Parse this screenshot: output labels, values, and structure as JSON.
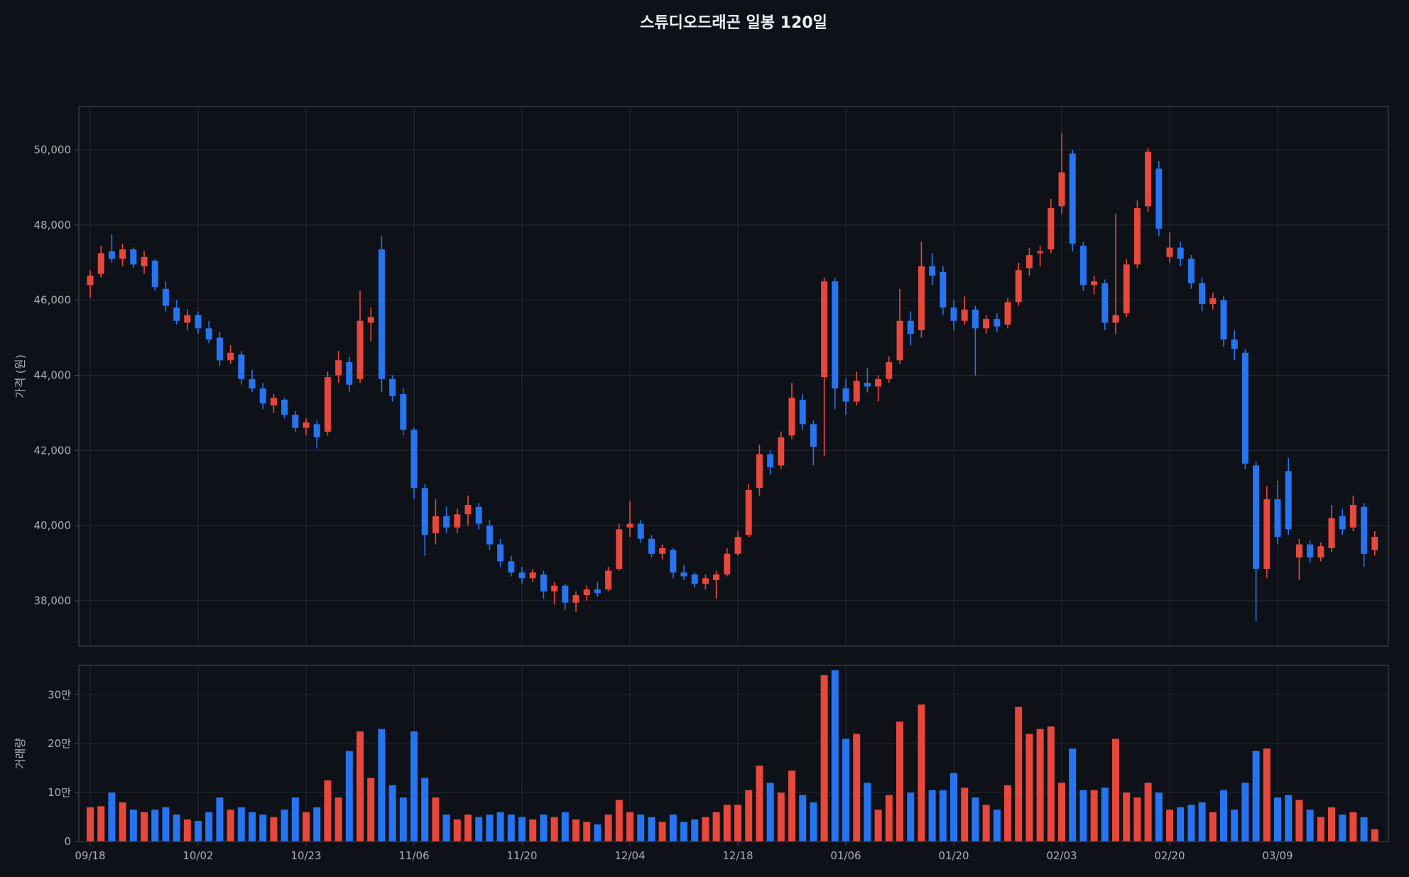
{
  "chart_data": {
    "type": "candlestick",
    "title": "스튜디오드래곤 일봉 120일",
    "grid": true,
    "colors": {
      "up": "#e8473c",
      "down": "#2774f0",
      "background": "#0e1117",
      "grid": "#232936",
      "spine": "#3d4452",
      "tick_text": "#a9afba",
      "title_text": "#eceff4"
    },
    "price": {
      "ylabel": "가격 (원)",
      "ylim": [
        36790,
        51153
      ],
      "yticks": [
        38000,
        40000,
        42000,
        44000,
        46000,
        48000,
        50000
      ],
      "ytick_labels": [
        "38,000",
        "40,000",
        "42,000",
        "44,000",
        "46,000",
        "48,000",
        "50,000"
      ]
    },
    "volume": {
      "ylabel": "거래량",
      "ylim": [
        0,
        360000
      ],
      "yticks": [
        0,
        100000,
        200000,
        300000
      ],
      "ytick_labels": [
        "0",
        "10만",
        "20만",
        "30만"
      ]
    },
    "x_tick_indices": [
      0,
      10,
      20,
      30,
      40,
      50,
      60,
      70,
      80,
      90,
      100,
      110
    ],
    "x_tick_labels": [
      "09/18",
      "10/02",
      "10/23",
      "11/06",
      "11/20",
      "12/04",
      "12/18",
      "01/06",
      "01/20",
      "02/03",
      "02/20",
      "03/09"
    ],
    "ohlcv": [
      [
        46400,
        46800,
        46050,
        46650,
        70000
      ],
      [
        46700,
        47450,
        46600,
        47250,
        72000
      ],
      [
        47300,
        47750,
        47000,
        47100,
        100000
      ],
      [
        47100,
        47500,
        46900,
        47350,
        80000
      ],
      [
        47350,
        47400,
        46850,
        46950,
        65000
      ],
      [
        46900,
        47300,
        46700,
        47150,
        60000
      ],
      [
        47050,
        47100,
        46250,
        46350,
        65000
      ],
      [
        46300,
        46500,
        45700,
        45850,
        70000
      ],
      [
        45800,
        46000,
        45350,
        45450,
        55000
      ],
      [
        45400,
        45750,
        45200,
        45600,
        45000
      ],
      [
        45600,
        45700,
        45100,
        45250,
        42000
      ],
      [
        45250,
        45450,
        44850,
        44950,
        60000
      ],
      [
        45000,
        45150,
        44250,
        44400,
        90000
      ],
      [
        44400,
        44800,
        44300,
        44600,
        65000
      ],
      [
        44550,
        44650,
        43750,
        43900,
        70000
      ],
      [
        43900,
        44150,
        43550,
        43650,
        60000
      ],
      [
        43650,
        43800,
        43100,
        43250,
        55000
      ],
      [
        43200,
        43500,
        43000,
        43400,
        50000
      ],
      [
        43350,
        43400,
        42850,
        42950,
        65000
      ],
      [
        42950,
        43050,
        42500,
        42600,
        90000
      ],
      [
        42600,
        42850,
        42400,
        42750,
        60000
      ],
      [
        42700,
        42800,
        42050,
        42350,
        70000
      ],
      [
        42500,
        44100,
        42400,
        43950,
        125000
      ],
      [
        44000,
        44650,
        43800,
        44400,
        90000
      ],
      [
        44350,
        44500,
        43550,
        43750,
        185000
      ],
      [
        43900,
        46250,
        43800,
        45450,
        225000
      ],
      [
        45400,
        45800,
        44900,
        45550,
        130000
      ],
      [
        47350,
        47700,
        43550,
        43900,
        230000
      ],
      [
        43900,
        44000,
        43300,
        43450,
        115000
      ],
      [
        43500,
        43650,
        42400,
        42550,
        90000
      ],
      [
        42550,
        42600,
        40700,
        41000,
        225000
      ],
      [
        41000,
        41100,
        39200,
        39750,
        130000
      ],
      [
        39800,
        40700,
        39500,
        40250,
        90000
      ],
      [
        40250,
        40500,
        39800,
        39950,
        55000
      ],
      [
        39950,
        40450,
        39800,
        40300,
        45000
      ],
      [
        40300,
        40800,
        40000,
        40550,
        55000
      ],
      [
        40500,
        40600,
        39900,
        40050,
        50000
      ],
      [
        40000,
        40150,
        39350,
        39500,
        55000
      ],
      [
        39500,
        39650,
        38900,
        39050,
        60000
      ],
      [
        39050,
        39200,
        38650,
        38750,
        55000
      ],
      [
        38750,
        38900,
        38450,
        38600,
        50000
      ],
      [
        38600,
        38850,
        38500,
        38750,
        45000
      ],
      [
        38700,
        38800,
        38050,
        38250,
        55000
      ],
      [
        38250,
        38500,
        37900,
        38400,
        50000
      ],
      [
        38400,
        38450,
        37750,
        37950,
        60000
      ],
      [
        37950,
        38250,
        37700,
        38150,
        45000
      ],
      [
        38150,
        38400,
        38000,
        38300,
        40000
      ],
      [
        38300,
        38500,
        38100,
        38200,
        35000
      ],
      [
        38300,
        38900,
        38250,
        38800,
        55000
      ],
      [
        38850,
        40050,
        38800,
        39900,
        85000
      ],
      [
        39950,
        40650,
        39700,
        40050,
        60000
      ],
      [
        40050,
        40150,
        39550,
        39650,
        55000
      ],
      [
        39650,
        39750,
        39150,
        39250,
        50000
      ],
      [
        39250,
        39500,
        39100,
        39400,
        40000
      ],
      [
        39350,
        39400,
        38600,
        38750,
        55000
      ],
      [
        38750,
        38950,
        38550,
        38650,
        40000
      ],
      [
        38700,
        38750,
        38350,
        38450,
        45000
      ],
      [
        38450,
        38700,
        38300,
        38600,
        50000
      ],
      [
        38550,
        38800,
        38050,
        38700,
        60000
      ],
      [
        38700,
        39400,
        38650,
        39250,
        75000
      ],
      [
        39250,
        39850,
        39200,
        39700,
        75000
      ],
      [
        39750,
        41100,
        39700,
        40950,
        105000
      ],
      [
        41000,
        42150,
        40800,
        41900,
        155000
      ],
      [
        41900,
        42000,
        41350,
        41550,
        120000
      ],
      [
        41600,
        42500,
        41500,
        42350,
        100000
      ],
      [
        42400,
        43800,
        42300,
        43400,
        145000
      ],
      [
        43350,
        43500,
        42550,
        42700,
        95000
      ],
      [
        42700,
        42800,
        41600,
        42100,
        80000
      ],
      [
        43950,
        46600,
        41850,
        46500,
        340000
      ],
      [
        46500,
        46600,
        43100,
        43650,
        350000
      ],
      [
        43650,
        43900,
        42950,
        43300,
        210000
      ],
      [
        43300,
        44100,
        43200,
        43850,
        220000
      ],
      [
        43800,
        44200,
        43550,
        43700,
        120000
      ],
      [
        43700,
        44000,
        43300,
        43900,
        65000
      ],
      [
        43900,
        44500,
        43800,
        44350,
        95000
      ],
      [
        44400,
        46300,
        44300,
        45450,
        245000
      ],
      [
        45450,
        45700,
        44800,
        45100,
        100000
      ],
      [
        45200,
        47550,
        45000,
        46900,
        280000
      ],
      [
        46900,
        47250,
        46400,
        46650,
        105000
      ],
      [
        46750,
        46900,
        45600,
        45800,
        105000
      ],
      [
        45800,
        46000,
        45200,
        45450,
        140000
      ],
      [
        45450,
        46100,
        45350,
        45750,
        110000
      ],
      [
        45750,
        45850,
        44000,
        45250,
        90000
      ],
      [
        45250,
        45600,
        45100,
        45500,
        75000
      ],
      [
        45500,
        45650,
        45150,
        45300,
        65000
      ],
      [
        45350,
        46050,
        45250,
        45950,
        115000
      ],
      [
        45950,
        47000,
        45850,
        46800,
        275000
      ],
      [
        46850,
        47400,
        46650,
        47200,
        220000
      ],
      [
        47250,
        47450,
        46900,
        47300,
        230000
      ],
      [
        47350,
        48700,
        47250,
        48450,
        235000
      ],
      [
        48500,
        50450,
        48300,
        49400,
        120000
      ],
      [
        49900,
        50000,
        47300,
        47500,
        190000
      ],
      [
        47450,
        47550,
        46250,
        46400,
        105000
      ],
      [
        46400,
        46650,
        46150,
        46500,
        105000
      ],
      [
        46450,
        46550,
        45200,
        45400,
        110000
      ],
      [
        45400,
        48300,
        45100,
        45600,
        210000
      ],
      [
        45650,
        47100,
        45550,
        46950,
        100000
      ],
      [
        46950,
        48650,
        46850,
        48450,
        90000
      ],
      [
        48500,
        50050,
        48350,
        49950,
        120000
      ],
      [
        49500,
        49700,
        47700,
        47900,
        100000
      ],
      [
        47150,
        47800,
        47000,
        47400,
        65000
      ],
      [
        47400,
        47550,
        46900,
        47100,
        70000
      ],
      [
        47100,
        47200,
        46300,
        46450,
        75000
      ],
      [
        46450,
        46600,
        45700,
        45900,
        80000
      ],
      [
        45900,
        46200,
        45750,
        46050,
        60000
      ],
      [
        46000,
        46100,
        44750,
        44950,
        105000
      ],
      [
        44950,
        45200,
        44400,
        44700,
        65000
      ],
      [
        44600,
        44700,
        41500,
        41650,
        120000
      ],
      [
        41600,
        41700,
        37450,
        38850,
        185000
      ],
      [
        38850,
        41050,
        38600,
        40700,
        190000
      ],
      [
        40700,
        41200,
        39500,
        39700,
        90000
      ],
      [
        41450,
        41800,
        39750,
        39900,
        95000
      ],
      [
        39150,
        39650,
        38550,
        39500,
        85000
      ],
      [
        39500,
        39600,
        39000,
        39150,
        65000
      ],
      [
        39150,
        39550,
        39050,
        39450,
        50000
      ],
      [
        39400,
        40550,
        39300,
        40200,
        70000
      ],
      [
        40250,
        40450,
        39750,
        39900,
        55000
      ],
      [
        39950,
        40800,
        39850,
        40550,
        60000
      ],
      [
        40500,
        40600,
        38900,
        39250,
        50000
      ],
      [
        39350,
        39850,
        39200,
        39700,
        25000
      ]
    ]
  }
}
